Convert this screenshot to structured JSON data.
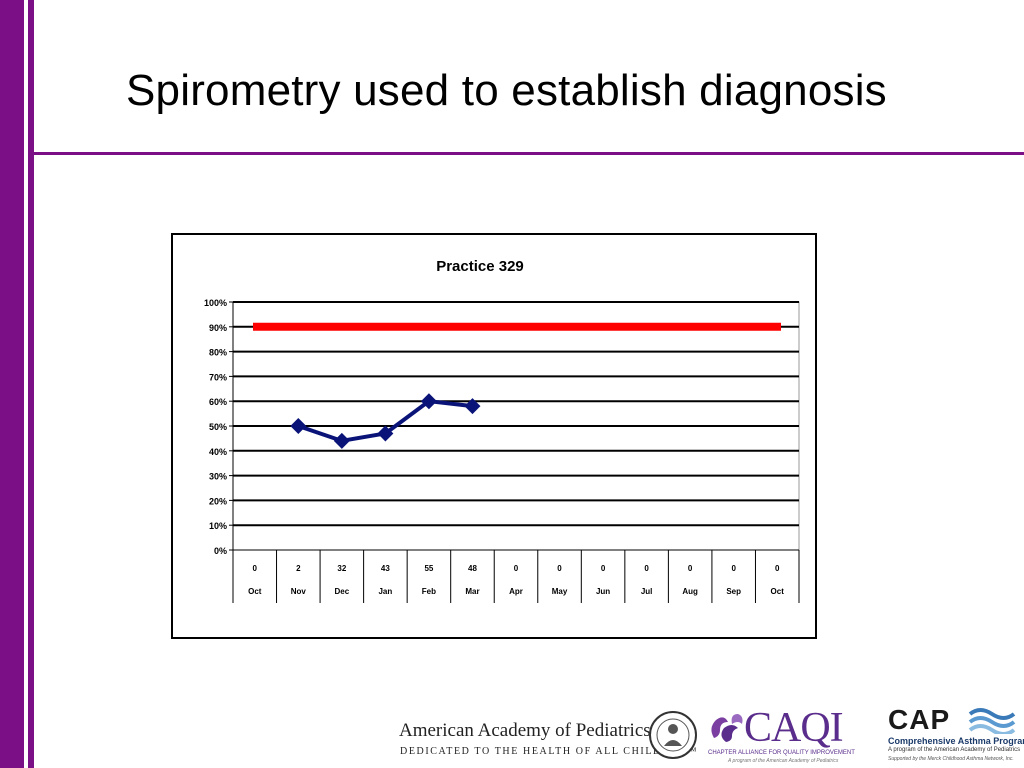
{
  "slide": {
    "title": "Spirometry used to establish diagnosis"
  },
  "colors": {
    "accent_purple": "#7a0f86",
    "goal_line": "#ff0000",
    "series_line": "#0a1478"
  },
  "chart_data": {
    "type": "line",
    "title": "Practice 329",
    "xlabel": "",
    "ylabel": "",
    "ylim": [
      0,
      100
    ],
    "y_ticks": [
      "0%",
      "10%",
      "20%",
      "30%",
      "40%",
      "50%",
      "60%",
      "70%",
      "80%",
      "90%",
      "100%"
    ],
    "categories": [
      "Oct",
      "Nov",
      "Dec",
      "Jan",
      "Feb",
      "Mar",
      "Apr",
      "May",
      "Jun",
      "Jul",
      "Aug",
      "Sep",
      "Oct"
    ],
    "counts": [
      "0",
      "2",
      "32",
      "43",
      "55",
      "48",
      "0",
      "0",
      "0",
      "0",
      "0",
      "0",
      "0"
    ],
    "goal": {
      "value": 90
    },
    "series": [
      {
        "values": [
          null,
          50,
          44,
          47,
          60,
          58,
          null,
          null,
          null,
          null,
          null,
          null,
          null
        ]
      }
    ],
    "grid": true,
    "legend": "none"
  },
  "footer": {
    "aap_name": "American Academy of Pediatrics",
    "aap_tagline": "DEDICATED TO THE HEALTH OF ALL CHILDREN™",
    "caqi_name": "CAQI",
    "caqi_sub": "CHAPTER ALLIANCE FOR QUALITY IMPROVEMENT",
    "caqi_sub2": "A program of the American Academy of Pediatrics",
    "cap_name": "CAP",
    "cap_sub1": "Comprehensive Asthma Program",
    "cap_sub2": "A program of the American Academy of Pediatrics",
    "cap_sub3": "Supported by the Merck Childhood Asthma Network, Inc."
  }
}
